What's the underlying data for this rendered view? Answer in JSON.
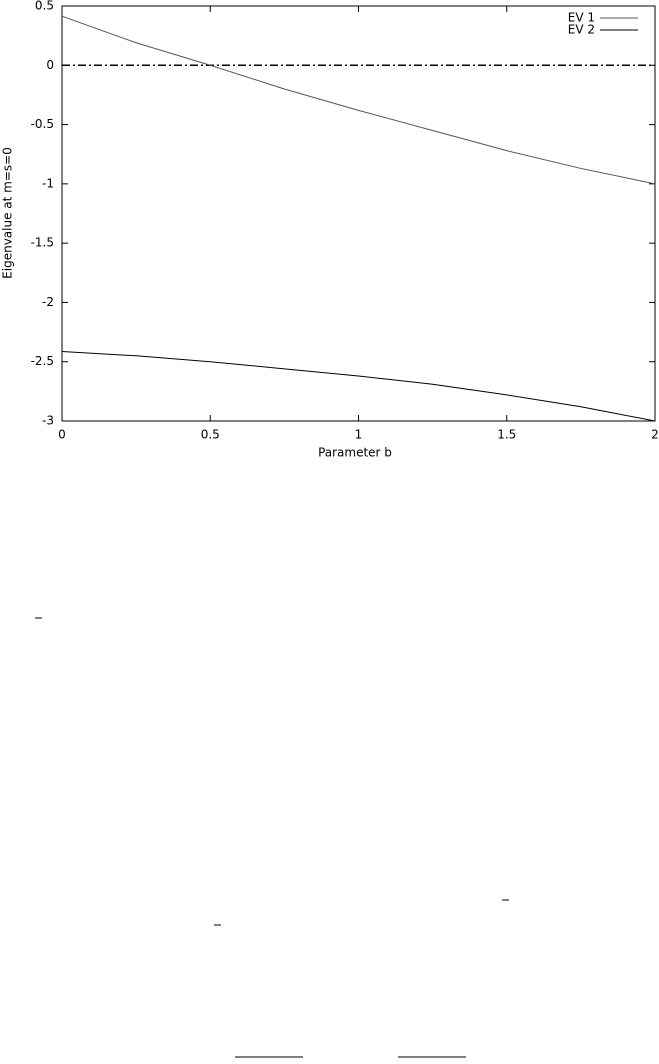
{
  "chart_data": {
    "type": "line",
    "xlabel": "Parameter b",
    "ylabel": "Eigenvalue at m=s=0",
    "x": [
      0,
      0.25,
      0.5,
      0.75,
      1,
      1.25,
      1.5,
      1.75,
      2
    ],
    "series": [
      {
        "name": "EV 1",
        "color": "#555555",
        "values": [
          0.414,
          0.19,
          0,
          -0.2,
          -0.38,
          -0.55,
          -0.72,
          -0.87,
          -1.0
        ]
      },
      {
        "name": "EV 2",
        "color": "#000000",
        "values": [
          -2.414,
          -2.45,
          -2.5,
          -2.56,
          -2.62,
          -2.69,
          -2.78,
          -2.88,
          -3.0
        ]
      }
    ],
    "reference_line": 0,
    "xlim": [
      0,
      2
    ],
    "xticks": [
      0,
      0.5,
      1,
      1.5,
      2
    ],
    "ylim": [
      -3,
      0.5
    ],
    "yticks": [
      0.5,
      0,
      -0.5,
      -1,
      -1.5,
      -2,
      -2.5,
      -3
    ],
    "legend": "upper right"
  }
}
